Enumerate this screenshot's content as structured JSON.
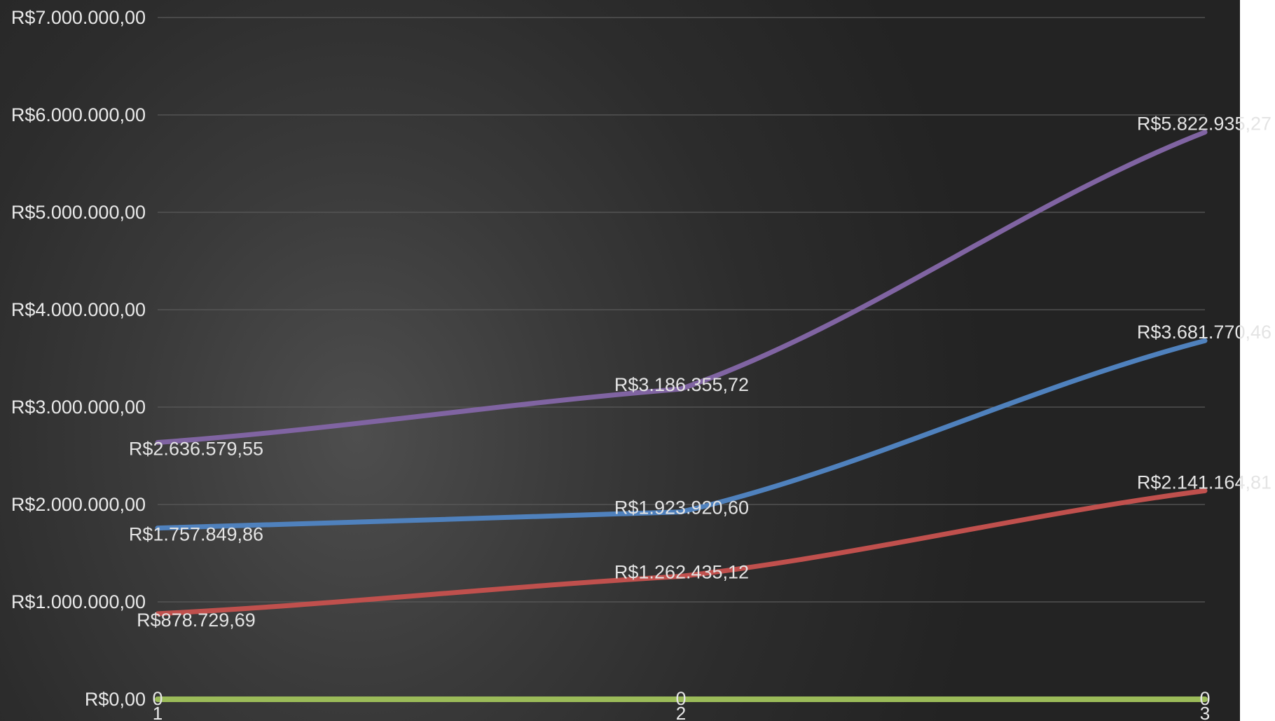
{
  "chart_data": {
    "type": "line",
    "x": [
      "1",
      "2",
      "3"
    ],
    "ylim": [
      0,
      7000000
    ],
    "y_ticks": [
      {
        "value": 0,
        "label": "R$0,00"
      },
      {
        "value": 1000000,
        "label": "R$1.000.000,00"
      },
      {
        "value": 2000000,
        "label": "R$2.000.000,00"
      },
      {
        "value": 3000000,
        "label": "R$3.000.000,00"
      },
      {
        "value": 4000000,
        "label": "R$4.000.000,00"
      },
      {
        "value": 5000000,
        "label": "R$5.000.000,00"
      },
      {
        "value": 6000000,
        "label": "R$6.000.000,00"
      },
      {
        "value": 7000000,
        "label": "R$7.000.000,00"
      }
    ],
    "grid": true,
    "legend": "none",
    "series": [
      {
        "color": "#8064a2",
        "values": [
          2636579.55,
          3186355.72,
          5822935.27
        ],
        "labels": [
          "R$2.636.579,55",
          "R$3.186.355,72",
          "R$5.822.935,27"
        ]
      },
      {
        "color": "#4f81bd",
        "values": [
          1757849.86,
          1923920.6,
          3681770.46
        ],
        "labels": [
          "R$1.757.849,86",
          "R$1.923.920,60",
          "R$3.681.770,46"
        ]
      },
      {
        "color": "#c0504d",
        "values": [
          878729.69,
          1262435.12,
          2141164.81
        ],
        "labels": [
          "R$878.729,69",
          "R$1.262.435,12",
          "R$2.141.164,81"
        ]
      },
      {
        "color": "#9bbb59",
        "values": [
          0,
          0,
          0
        ],
        "labels": [
          "0",
          "0",
          "0"
        ]
      }
    ]
  }
}
